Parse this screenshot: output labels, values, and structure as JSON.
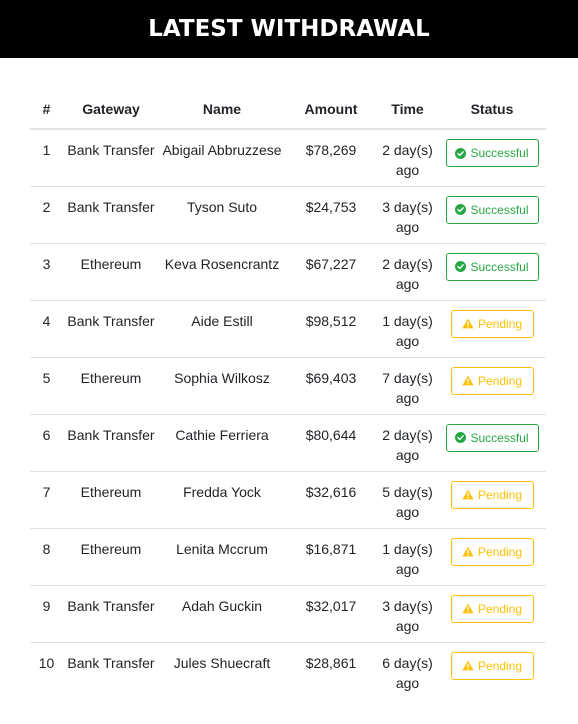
{
  "page": {
    "title": "LATEST WITHDRAWAL"
  },
  "colors": {
    "header_bg": "#000000",
    "success": "#28a745",
    "pending": "#ffc107"
  },
  "table": {
    "headers": [
      "#",
      "Gateway",
      "Name",
      "Amount",
      "Time",
      "Status"
    ],
    "rows": [
      {
        "num": "1",
        "gateway": "Bank Transfer",
        "name": "Abigail Abbruzzese",
        "amount": "$78,269",
        "time": "2 day(s) ago",
        "status": "Successful",
        "status_type": "success",
        "icon": "check-circle-icon"
      },
      {
        "num": "2",
        "gateway": "Bank Transfer",
        "name": "Tyson Suto",
        "amount": "$24,753",
        "time": "3 day(s) ago",
        "status": "Successful",
        "status_type": "success",
        "icon": "check-circle-icon"
      },
      {
        "num": "3",
        "gateway": "Ethereum",
        "name": "Keva Rosencrantz",
        "amount": "$67,227",
        "time": "2 day(s) ago",
        "status": "Successful",
        "status_type": "success",
        "icon": "check-circle-icon"
      },
      {
        "num": "4",
        "gateway": "Bank Transfer",
        "name": "Aide Estill",
        "amount": "$98,512",
        "time": "1 day(s) ago",
        "status": "Pending",
        "status_type": "pending",
        "icon": "warning-icon"
      },
      {
        "num": "5",
        "gateway": "Ethereum",
        "name": "Sophia Wilkosz",
        "amount": "$69,403",
        "time": "7 day(s) ago",
        "status": "Pending",
        "status_type": "pending",
        "icon": "warning-icon"
      },
      {
        "num": "6",
        "gateway": "Bank Transfer",
        "name": "Cathie Ferriera",
        "amount": "$80,644",
        "time": "2 day(s) ago",
        "status": "Successful",
        "status_type": "success",
        "icon": "check-circle-icon"
      },
      {
        "num": "7",
        "gateway": "Ethereum",
        "name": "Fredda Yock",
        "amount": "$32,616",
        "time": "5 day(s) ago",
        "status": "Pending",
        "status_type": "pending",
        "icon": "warning-icon"
      },
      {
        "num": "8",
        "gateway": "Ethereum",
        "name": "Lenita Mccrum",
        "amount": "$16,871",
        "time": "1 day(s) ago",
        "status": "Pending",
        "status_type": "pending",
        "icon": "warning-icon"
      },
      {
        "num": "9",
        "gateway": "Bank Transfer",
        "name": "Adah Guckin",
        "amount": "$32,017",
        "time": "3 day(s) ago",
        "status": "Pending",
        "status_type": "pending",
        "icon": "warning-icon"
      },
      {
        "num": "10",
        "gateway": "Bank Transfer",
        "name": "Jules Shuecraft",
        "amount": "$28,861",
        "time": "6 day(s) ago",
        "status": "Pending",
        "status_type": "pending",
        "icon": "warning-icon"
      }
    ]
  }
}
